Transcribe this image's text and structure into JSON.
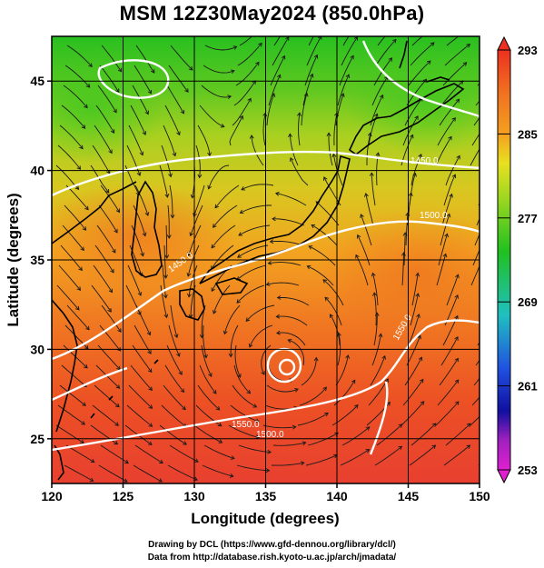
{
  "title": "MSM 12Z30May2024 (850.0hPa)",
  "axes": {
    "xlabel": "Longitude (degrees)",
    "ylabel": "Latitude  (degrees)",
    "xlim": [
      120,
      150
    ],
    "ylim": [
      22.5,
      47.5
    ],
    "xticks": [
      "120",
      "125",
      "130",
      "135",
      "140",
      "145",
      "150"
    ],
    "yticks": [
      "25",
      "30",
      "35",
      "40",
      "45"
    ]
  },
  "colorbar": {
    "ticks": [
      "293",
      "285",
      "277",
      "269",
      "261",
      "253"
    ],
    "range": [
      253,
      293
    ],
    "colors": {
      "top": "#ee3020",
      "warm": "#f07020",
      "orange": "#f5a020",
      "yellow": "#e8e020",
      "green": "#20c020",
      "cyan": "#20c0c0",
      "blue": "#2050e0",
      "navy": "#1010a0",
      "purple": "#a020c0",
      "magenta": "#e020d0"
    }
  },
  "contours": [
    {
      "label": "1450.0"
    },
    {
      "label": "1500.0"
    },
    {
      "label": "1450.0"
    },
    {
      "label": "1500.0"
    },
    {
      "label": "1550.0"
    },
    {
      "label": "1550.0"
    }
  ],
  "features": {
    "typhoon_center": "typhoon low near 136.5E 29.8N"
  },
  "footer": {
    "line1": "Drawing by DCL (https://www.gfd-dennou.org/library/dcl/)",
    "line2": "Data from http://database.rish.kyoto-u.ac.jp/arch/jmadata/"
  }
}
